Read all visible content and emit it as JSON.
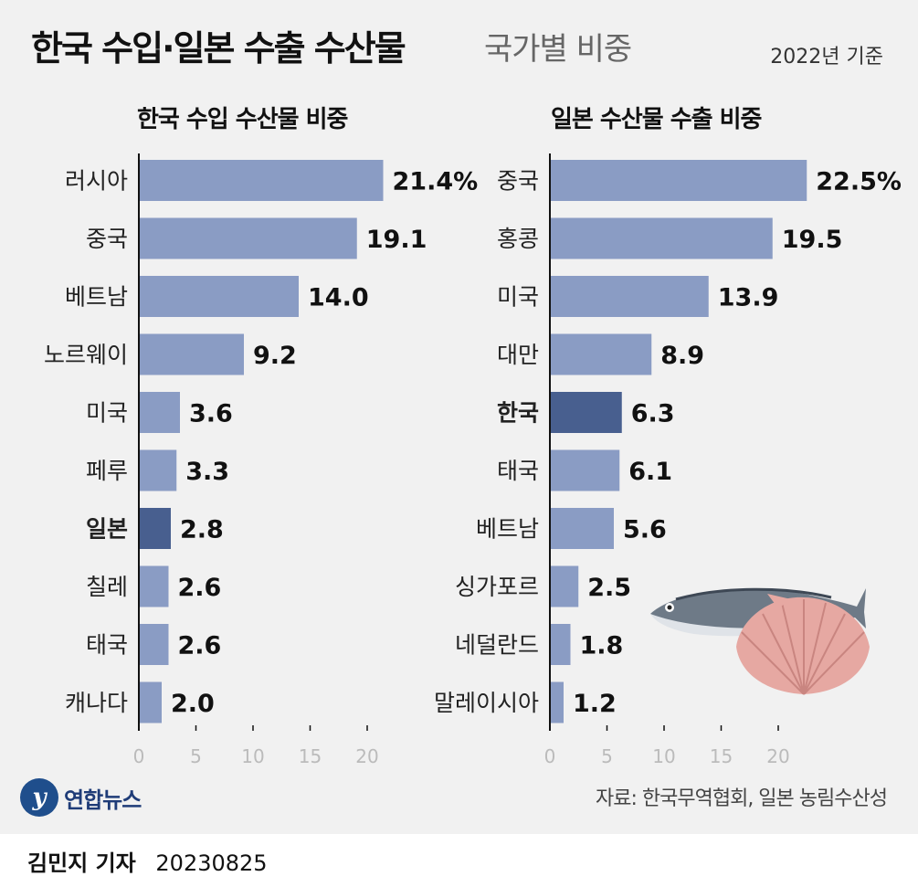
{
  "header": {
    "title": "한국 수입·일본 수출 수산물",
    "subtitle": "국가별 비중",
    "year_note": "2022년 기준"
  },
  "chart_data": [
    {
      "type": "bar",
      "orientation": "horizontal",
      "title": "한국 수입 수산물 비중",
      "categories": [
        "러시아",
        "중국",
        "베트남",
        "노르웨이",
        "미국",
        "페루",
        "일본",
        "칠레",
        "태국",
        "캐나다"
      ],
      "values": [
        21.4,
        19.1,
        14.0,
        9.2,
        3.6,
        3.3,
        2.8,
        2.6,
        2.6,
        2.0
      ],
      "value_labels": [
        "21.4%",
        "19.1",
        "14.0",
        "9.2",
        "3.6",
        "3.3",
        "2.8",
        "2.6",
        "2.6",
        "2.0"
      ],
      "highlight": "일본",
      "xlim": [
        0,
        22
      ],
      "xticks": [
        "0",
        "5",
        "10",
        "15",
        "20"
      ],
      "xtick_values": [
        0,
        5,
        10,
        15,
        20
      ],
      "unit": "%"
    },
    {
      "type": "bar",
      "orientation": "horizontal",
      "title": "일본 수산물 수출 비중",
      "categories": [
        "중국",
        "홍콩",
        "미국",
        "대만",
        "한국",
        "태국",
        "베트남",
        "싱가포르",
        "네덜란드",
        "말레이시아"
      ],
      "values": [
        22.5,
        19.5,
        13.9,
        8.9,
        6.3,
        6.1,
        5.6,
        2.5,
        1.8,
        1.2
      ],
      "value_labels": [
        "22.5%",
        "19.5",
        "13.9",
        "8.9",
        "6.3",
        "6.1",
        "5.6",
        "2.5",
        "1.8",
        "1.2"
      ],
      "highlight": "한국",
      "xlim": [
        0,
        22
      ],
      "xticks": [
        "0",
        "5",
        "10",
        "15",
        "20"
      ],
      "xtick_values": [
        0,
        5,
        10,
        15,
        20
      ],
      "unit": "%"
    }
  ],
  "colors": {
    "bar": "#8a9cc4",
    "bar_highlight": "#485f8f",
    "axis": "#111111",
    "tick_label": "#bbbbbb",
    "background": "#f1f1f1"
  },
  "footer": {
    "logo_text": "연합뉴스",
    "logo_icon": "yonhap-logo-icon",
    "source": "자료: 한국무역협회, 일본 농림수산성",
    "author": "김민지 기자",
    "date": "20230825"
  },
  "illustration": {
    "icons": [
      "mackerel-fish-icon",
      "scallop-shell-icon"
    ]
  }
}
